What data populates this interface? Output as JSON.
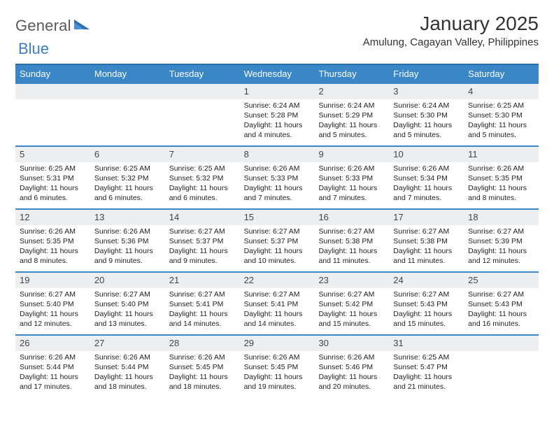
{
  "logo": {
    "general": "General",
    "blue": "Blue"
  },
  "title": "January 2025",
  "location": "Amulung, Cagayan Valley, Philippines",
  "colors": {
    "header_bg": "#3a87c7",
    "header_border_top": "#2b6ca3",
    "week_border": "#3a87c7",
    "daynum_bg": "#eceeef",
    "logo_gray": "#5a5a5a",
    "logo_blue": "#3a7fc4"
  },
  "dow": [
    "Sunday",
    "Monday",
    "Tuesday",
    "Wednesday",
    "Thursday",
    "Friday",
    "Saturday"
  ],
  "weeks": [
    [
      {
        "n": "",
        "lines": []
      },
      {
        "n": "",
        "lines": []
      },
      {
        "n": "",
        "lines": []
      },
      {
        "n": "1",
        "lines": [
          "Sunrise: 6:24 AM",
          "Sunset: 5:28 PM",
          "Daylight: 11 hours and 4 minutes."
        ]
      },
      {
        "n": "2",
        "lines": [
          "Sunrise: 6:24 AM",
          "Sunset: 5:29 PM",
          "Daylight: 11 hours and 5 minutes."
        ]
      },
      {
        "n": "3",
        "lines": [
          "Sunrise: 6:24 AM",
          "Sunset: 5:30 PM",
          "Daylight: 11 hours and 5 minutes."
        ]
      },
      {
        "n": "4",
        "lines": [
          "Sunrise: 6:25 AM",
          "Sunset: 5:30 PM",
          "Daylight: 11 hours and 5 minutes."
        ]
      }
    ],
    [
      {
        "n": "5",
        "lines": [
          "Sunrise: 6:25 AM",
          "Sunset: 5:31 PM",
          "Daylight: 11 hours and 6 minutes."
        ]
      },
      {
        "n": "6",
        "lines": [
          "Sunrise: 6:25 AM",
          "Sunset: 5:32 PM",
          "Daylight: 11 hours and 6 minutes."
        ]
      },
      {
        "n": "7",
        "lines": [
          "Sunrise: 6:25 AM",
          "Sunset: 5:32 PM",
          "Daylight: 11 hours and 6 minutes."
        ]
      },
      {
        "n": "8",
        "lines": [
          "Sunrise: 6:26 AM",
          "Sunset: 5:33 PM",
          "Daylight: 11 hours and 7 minutes."
        ]
      },
      {
        "n": "9",
        "lines": [
          "Sunrise: 6:26 AM",
          "Sunset: 5:33 PM",
          "Daylight: 11 hours and 7 minutes."
        ]
      },
      {
        "n": "10",
        "lines": [
          "Sunrise: 6:26 AM",
          "Sunset: 5:34 PM",
          "Daylight: 11 hours and 7 minutes."
        ]
      },
      {
        "n": "11",
        "lines": [
          "Sunrise: 6:26 AM",
          "Sunset: 5:35 PM",
          "Daylight: 11 hours and 8 minutes."
        ]
      }
    ],
    [
      {
        "n": "12",
        "lines": [
          "Sunrise: 6:26 AM",
          "Sunset: 5:35 PM",
          "Daylight: 11 hours and 8 minutes."
        ]
      },
      {
        "n": "13",
        "lines": [
          "Sunrise: 6:26 AM",
          "Sunset: 5:36 PM",
          "Daylight: 11 hours and 9 minutes."
        ]
      },
      {
        "n": "14",
        "lines": [
          "Sunrise: 6:27 AM",
          "Sunset: 5:37 PM",
          "Daylight: 11 hours and 9 minutes."
        ]
      },
      {
        "n": "15",
        "lines": [
          "Sunrise: 6:27 AM",
          "Sunset: 5:37 PM",
          "Daylight: 11 hours and 10 minutes."
        ]
      },
      {
        "n": "16",
        "lines": [
          "Sunrise: 6:27 AM",
          "Sunset: 5:38 PM",
          "Daylight: 11 hours and 11 minutes."
        ]
      },
      {
        "n": "17",
        "lines": [
          "Sunrise: 6:27 AM",
          "Sunset: 5:38 PM",
          "Daylight: 11 hours and 11 minutes."
        ]
      },
      {
        "n": "18",
        "lines": [
          "Sunrise: 6:27 AM",
          "Sunset: 5:39 PM",
          "Daylight: 11 hours and 12 minutes."
        ]
      }
    ],
    [
      {
        "n": "19",
        "lines": [
          "Sunrise: 6:27 AM",
          "Sunset: 5:40 PM",
          "Daylight: 11 hours and 12 minutes."
        ]
      },
      {
        "n": "20",
        "lines": [
          "Sunrise: 6:27 AM",
          "Sunset: 5:40 PM",
          "Daylight: 11 hours and 13 minutes."
        ]
      },
      {
        "n": "21",
        "lines": [
          "Sunrise: 6:27 AM",
          "Sunset: 5:41 PM",
          "Daylight: 11 hours and 14 minutes."
        ]
      },
      {
        "n": "22",
        "lines": [
          "Sunrise: 6:27 AM",
          "Sunset: 5:41 PM",
          "Daylight: 11 hours and 14 minutes."
        ]
      },
      {
        "n": "23",
        "lines": [
          "Sunrise: 6:27 AM",
          "Sunset: 5:42 PM",
          "Daylight: 11 hours and 15 minutes."
        ]
      },
      {
        "n": "24",
        "lines": [
          "Sunrise: 6:27 AM",
          "Sunset: 5:43 PM",
          "Daylight: 11 hours and 15 minutes."
        ]
      },
      {
        "n": "25",
        "lines": [
          "Sunrise: 6:27 AM",
          "Sunset: 5:43 PM",
          "Daylight: 11 hours and 16 minutes."
        ]
      }
    ],
    [
      {
        "n": "26",
        "lines": [
          "Sunrise: 6:26 AM",
          "Sunset: 5:44 PM",
          "Daylight: 11 hours and 17 minutes."
        ]
      },
      {
        "n": "27",
        "lines": [
          "Sunrise: 6:26 AM",
          "Sunset: 5:44 PM",
          "Daylight: 11 hours and 18 minutes."
        ]
      },
      {
        "n": "28",
        "lines": [
          "Sunrise: 6:26 AM",
          "Sunset: 5:45 PM",
          "Daylight: 11 hours and 18 minutes."
        ]
      },
      {
        "n": "29",
        "lines": [
          "Sunrise: 6:26 AM",
          "Sunset: 5:45 PM",
          "Daylight: 11 hours and 19 minutes."
        ]
      },
      {
        "n": "30",
        "lines": [
          "Sunrise: 6:26 AM",
          "Sunset: 5:46 PM",
          "Daylight: 11 hours and 20 minutes."
        ]
      },
      {
        "n": "31",
        "lines": [
          "Sunrise: 6:25 AM",
          "Sunset: 5:47 PM",
          "Daylight: 11 hours and 21 minutes."
        ]
      },
      {
        "n": "",
        "lines": []
      }
    ]
  ]
}
